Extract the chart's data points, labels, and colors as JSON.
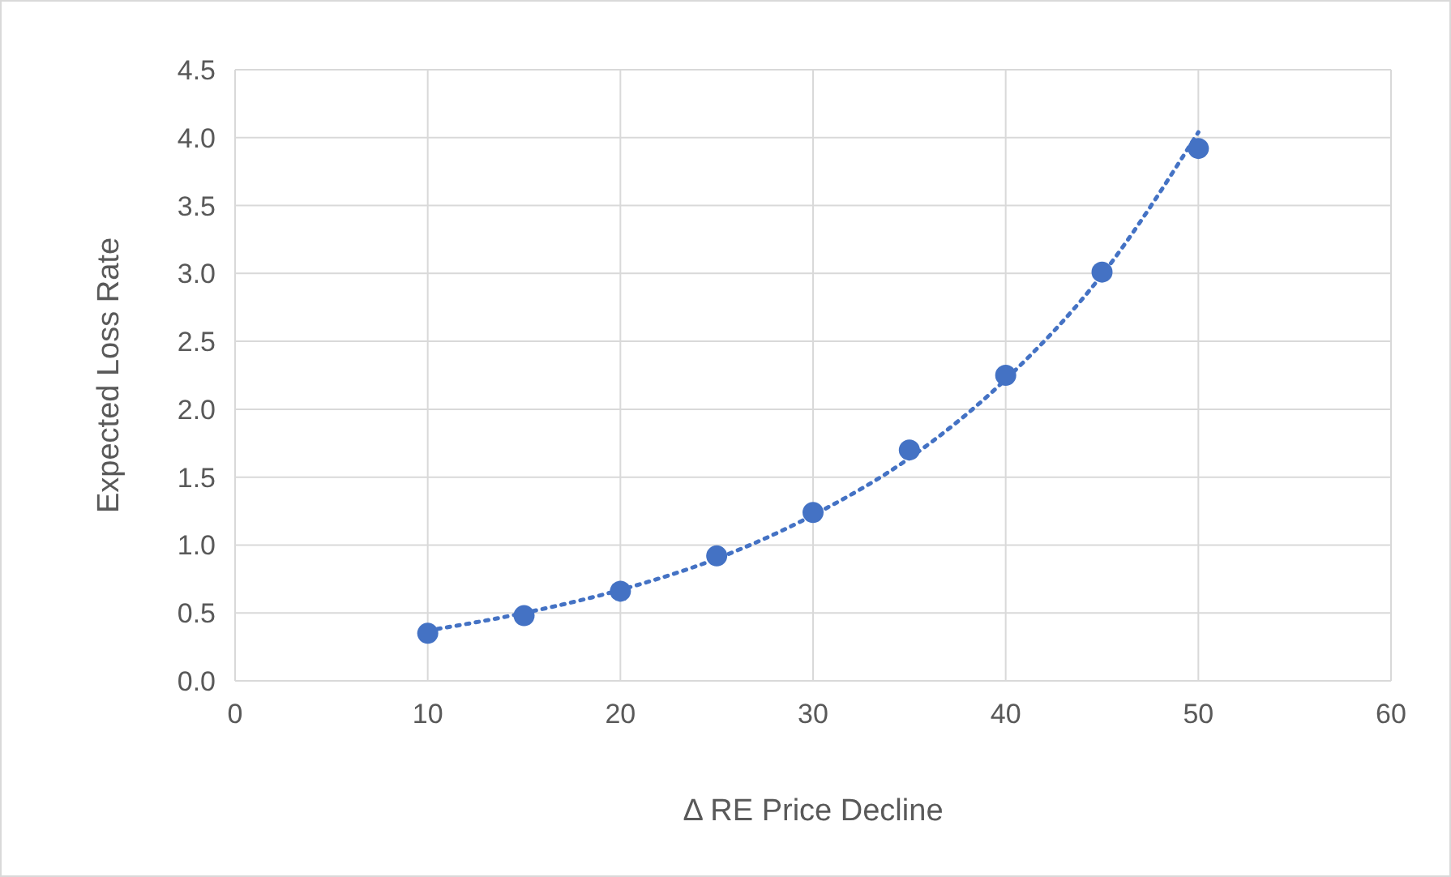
{
  "chart_data": {
    "type": "scatter",
    "xlabel": "Δ RE Price Decline",
    "ylabel": "Expected  Loss Rate",
    "xlim": [
      0,
      60
    ],
    "xticks": [
      0,
      10,
      20,
      30,
      40,
      50,
      60
    ],
    "ylim": [
      0,
      4.5
    ],
    "yticks": [
      {
        "value": 0,
        "label": "0.0"
      },
      {
        "value": 0.5,
        "label": "0.5"
      },
      {
        "value": 1,
        "label": "1.0"
      },
      {
        "value": 1.5,
        "label": "1.5"
      },
      {
        "value": 2,
        "label": "2.0"
      },
      {
        "value": 2.5,
        "label": "2.5"
      },
      {
        "value": 3,
        "label": "3.0"
      },
      {
        "value": 3.5,
        "label": "3.5"
      },
      {
        "value": 4,
        "label": "4.0"
      },
      {
        "value": 4.5,
        "label": "4.5"
      }
    ],
    "grid": true,
    "series": [
      {
        "marker": "circle",
        "color": "#4472c4",
        "x": [
          10,
          15,
          20,
          25,
          30,
          35,
          40,
          45,
          50
        ],
        "values": [
          0.35,
          0.48,
          0.66,
          0.92,
          1.24,
          1.7,
          2.25,
          3.01,
          3.92
        ]
      },
      {
        "type": "line",
        "line_style": "dotted",
        "marker": "none",
        "color": "#4472c4",
        "x": [
          10,
          15,
          20,
          25,
          30,
          35,
          40,
          45,
          50
        ],
        "values": [
          0.37,
          0.5,
          0.67,
          0.9,
          1.22,
          1.64,
          2.22,
          2.99,
          4.04
        ]
      }
    ]
  }
}
